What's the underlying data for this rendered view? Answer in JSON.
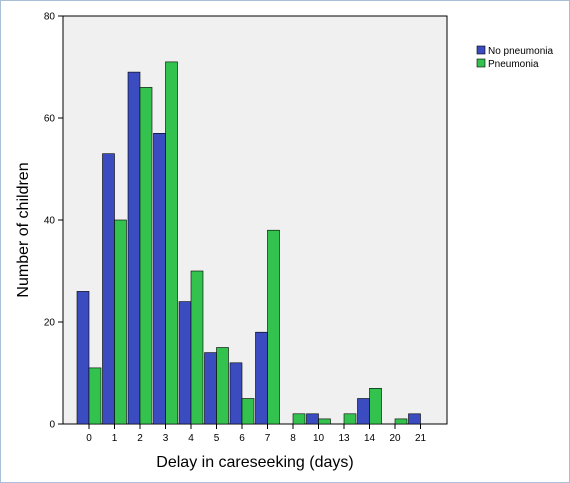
{
  "chart_data": {
    "type": "bar",
    "title": "",
    "xlabel": "Delay in careseeking (days)",
    "ylabel": "Number of children",
    "categories": [
      "0",
      "1",
      "2",
      "3",
      "4",
      "5",
      "6",
      "7",
      "8",
      "10",
      "13",
      "14",
      "20",
      "21"
    ],
    "series": [
      {
        "name": "No pneumonia",
        "color": "#3b4cc0",
        "values": [
          26,
          53,
          69,
          57,
          24,
          14,
          12,
          18,
          0,
          2,
          0,
          5,
          0,
          2
        ]
      },
      {
        "name": "Pneumonia",
        "color": "#33c24d",
        "values": [
          11,
          40,
          66,
          71,
          30,
          15,
          5,
          38,
          2,
          1,
          2,
          7,
          1,
          0
        ]
      }
    ],
    "ylim": [
      0,
      80
    ],
    "yticks": [
      0,
      20,
      40,
      60,
      80
    ],
    "grid": false,
    "legend_position": "top-right",
    "plot_background": "#f0f0f0"
  }
}
